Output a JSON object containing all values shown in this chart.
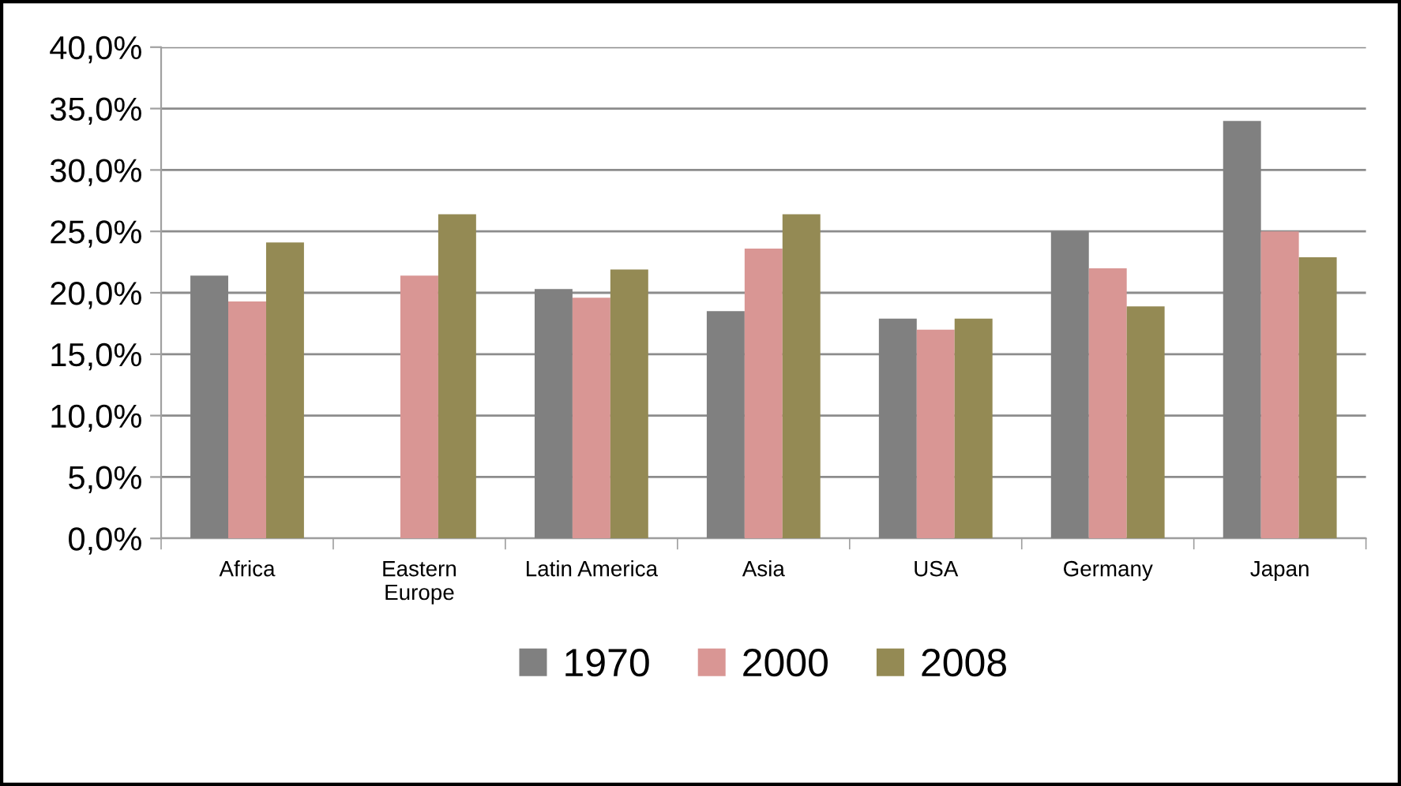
{
  "chart_data": {
    "type": "bar",
    "categories": [
      "Africa",
      "Eastern\nEurope",
      "Latin America",
      "Asia",
      "USA",
      "Germany",
      "Japan"
    ],
    "series": [
      {
        "name": "1970",
        "color": "#808080",
        "values": [
          21.4,
          null,
          20.3,
          18.5,
          17.9,
          25.0,
          34.0
        ]
      },
      {
        "name": "2000",
        "color": "#d99694",
        "values": [
          19.3,
          21.4,
          19.6,
          23.6,
          17.0,
          22.0,
          25.0
        ]
      },
      {
        "name": "2008",
        "color": "#948a54",
        "values": [
          24.1,
          26.4,
          21.9,
          26.4,
          17.9,
          18.9,
          22.9
        ]
      }
    ],
    "ylim": [
      0,
      40
    ],
    "yticks": [
      {
        "value": 0,
        "label": "0,0%"
      },
      {
        "value": 5,
        "label": "5,0%"
      },
      {
        "value": 10,
        "label": "10,0%"
      },
      {
        "value": 15,
        "label": "15,0%"
      },
      {
        "value": 20,
        "label": "20,0%"
      },
      {
        "value": 25,
        "label": "25,0%"
      },
      {
        "value": 30,
        "label": "30,0%"
      },
      {
        "value": 35,
        "label": "35,0%"
      },
      {
        "value": 40,
        "label": "40,0%"
      }
    ],
    "grid": "y",
    "legend": "bottom"
  }
}
